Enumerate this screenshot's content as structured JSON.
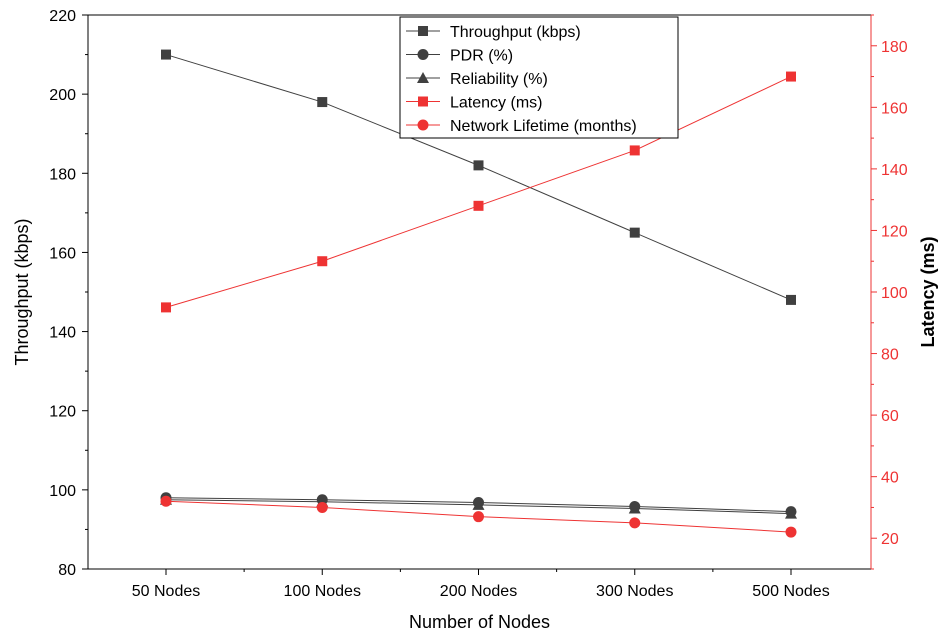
{
  "chart_data": {
    "type": "line",
    "title": "",
    "xlabel": "Number of Nodes",
    "ylabel": "Throughput (kbps)",
    "ylabel_right": "Latency (ms)",
    "categories": [
      "50 Nodes",
      "100 Nodes",
      "200 Nodes",
      "300 Nodes",
      "500 Nodes"
    ],
    "ylim": [
      80,
      220
    ],
    "ylim_right": [
      10,
      190
    ],
    "yticks": [
      80,
      100,
      120,
      140,
      160,
      180,
      200,
      220
    ],
    "yticks_right": [
      20,
      40,
      60,
      80,
      100,
      120,
      140,
      160,
      180
    ],
    "grid": false,
    "legend_position": "top-center",
    "series": [
      {
        "name": "Throughput (kbps)",
        "axis": "left",
        "marker": "square",
        "color": "#404040",
        "values": [
          210,
          198,
          182,
          165,
          148
        ]
      },
      {
        "name": "PDR (%)",
        "axis": "left",
        "marker": "circle",
        "color": "#404040",
        "values": [
          98,
          97.5,
          96.8,
          95.8,
          94.5
        ]
      },
      {
        "name": "Reliability (%)",
        "axis": "left",
        "marker": "triangle",
        "color": "#404040",
        "values": [
          97.5,
          97,
          96.2,
          95.3,
          94
        ]
      },
      {
        "name": "Latency (ms)",
        "axis": "right",
        "marker": "square",
        "color": "#ee3333",
        "values": [
          95,
          110,
          128,
          146,
          170
        ]
      },
      {
        "name": "Network Lifetime (months)",
        "axis": "right",
        "marker": "circle",
        "color": "#ee3333",
        "values": [
          32,
          30,
          27,
          25,
          22
        ]
      }
    ],
    "colors": {
      "axis_left": "#000000",
      "axis_right": "#ee3333"
    }
  }
}
